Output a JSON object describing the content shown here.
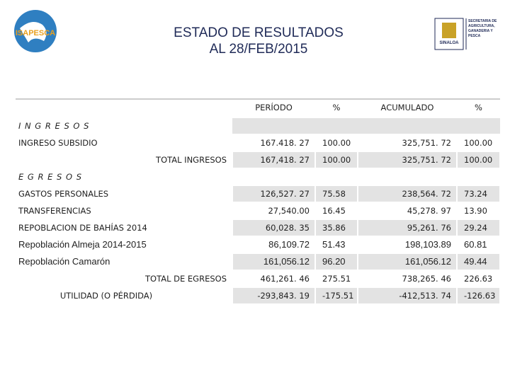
{
  "header": {
    "title": "ESTADO DE RESULTADOS",
    "subtitle": "AL  28/FEB/2015",
    "logo_left": "ISAPESCA",
    "logo_right": "SINALOA",
    "logo_right_caption": "SECRETARIA DE AGRICULTURA, GANADERIA Y PESCA"
  },
  "table": {
    "columns": [
      "PERÍODO",
      "%",
      "ACUMULADO",
      "%"
    ],
    "rows": [
      [
        "I N G R E S O S"
      ],
      [
        "INGRESO SUBSIDIO",
        "167.418. 27",
        "100.00",
        "325,751. 72",
        "100.00"
      ],
      [
        "TOTAL INGRESOS",
        "167,418. 27",
        "100.00",
        "325,751. 72",
        "100.00"
      ],
      [
        "E G R E S O S"
      ],
      [
        "GASTOS PERSONALES",
        "126,527. 27",
        "75.58",
        "238,564. 72",
        "73.24"
      ],
      [
        "TRANSFERENCIAS",
        "27,540.00",
        "16.45",
        "45,278. 97",
        "13.90"
      ],
      [
        "REPOBLACION DE BAHÍAS 2014",
        "60,028. 35",
        "35.86",
        "95,261. 76",
        "29.24"
      ],
      [
        "Repoblación Almeja 2014-2015",
        "86,109.72",
        "51.43",
        "198,103.89",
        "60.81"
      ],
      [
        "Repoblación Camarón",
        "161,056.12",
        "96.20",
        "161,056.12",
        "49.44"
      ],
      [
        "TOTAL DE EGRESOS",
        "461,261. 46",
        "275.51",
        "738,265. 46",
        "226.63"
      ],
      [
        "UTILIDAD (O PÉRDIDA)",
        "-293,843. 19",
        "-175.51",
        "-412,513. 74",
        "-126.63"
      ]
    ]
  }
}
